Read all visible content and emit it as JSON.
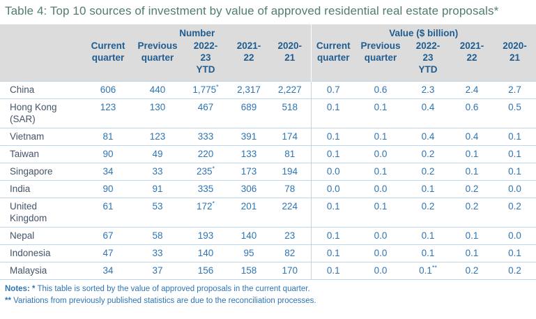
{
  "title": "Table 4: Top 10 sources of investment by value of approved residential real estate proposals*",
  "table": {
    "groups": [
      "Number",
      "Value ($ billion)"
    ],
    "subcolumns": [
      "Current\nquarter",
      "Previous\nquarter",
      "2022-\n23\nYTD",
      "2021-\n22",
      "2020-\n21"
    ],
    "rows": [
      {
        "country": "China",
        "cells": [
          "606",
          "440",
          "1,775",
          "2,317",
          "2,227",
          "0.7",
          "0.6",
          "2.3",
          "2.4",
          "2.7"
        ],
        "sups": [
          "",
          "",
          "*",
          "",
          "",
          "",
          "",
          "",
          "",
          ""
        ]
      },
      {
        "country": "Hong Kong (SAR)",
        "cells": [
          "123",
          "130",
          "467",
          "689",
          "518",
          "0.1",
          "0.1",
          "0.4",
          "0.6",
          "0.5"
        ],
        "sups": [
          "",
          "",
          "",
          "",
          "",
          "",
          "",
          "",
          "",
          ""
        ]
      },
      {
        "country": "Vietnam",
        "cells": [
          "81",
          "123",
          "333",
          "391",
          "174",
          "0.1",
          "0.1",
          "0.4",
          "0.4",
          "0.1"
        ],
        "sups": [
          "",
          "",
          "",
          "",
          "",
          "",
          "",
          "",
          "",
          ""
        ]
      },
      {
        "country": "Taiwan",
        "cells": [
          "90",
          "49",
          "220",
          "133",
          "81",
          "0.1",
          "0.0",
          "0.2",
          "0.1",
          "0.1"
        ],
        "sups": [
          "",
          "",
          "",
          "",
          "",
          "",
          "",
          "",
          "",
          ""
        ]
      },
      {
        "country": "Singapore",
        "cells": [
          "34",
          "33",
          "235",
          "173",
          "194",
          "0.0",
          "0.1",
          "0.2",
          "0.1",
          "0.1"
        ],
        "sups": [
          "",
          "",
          "*",
          "",
          "",
          "",
          "",
          "",
          "",
          ""
        ]
      },
      {
        "country": "India",
        "cells": [
          "90",
          "91",
          "335",
          "306",
          "78",
          "0.0",
          "0.0",
          "0.1",
          "0.2",
          "0.0"
        ],
        "sups": [
          "",
          "",
          "",
          "",
          "",
          "",
          "",
          "",
          "",
          ""
        ]
      },
      {
        "country": "United Kingdom",
        "cells": [
          "61",
          "53",
          "172",
          "201",
          "224",
          "0.1",
          "0.1",
          "0.2",
          "0.2",
          "0.2"
        ],
        "sups": [
          "",
          "",
          "*",
          "",
          "",
          "",
          "",
          "",
          "",
          ""
        ]
      },
      {
        "country": "Nepal",
        "cells": [
          "67",
          "58",
          "193",
          "140",
          "23",
          "0.1",
          "0.0",
          "0.1",
          "0.1",
          "0.0"
        ],
        "sups": [
          "",
          "",
          "",
          "",
          "",
          "",
          "",
          "",
          "",
          ""
        ]
      },
      {
        "country": "Indonesia",
        "cells": [
          "47",
          "33",
          "140",
          "95",
          "82",
          "0.1",
          "0.0",
          "0.1",
          "0.1",
          "0.1"
        ],
        "sups": [
          "",
          "",
          "",
          "",
          "",
          "",
          "",
          "",
          "",
          ""
        ]
      },
      {
        "country": "Malaysia",
        "cells": [
          "34",
          "37",
          "156",
          "158",
          "170",
          "0.1",
          "0.0",
          "0.1",
          "0.2",
          "0.2"
        ],
        "sups": [
          "",
          "",
          "",
          "",
          "",
          "",
          "",
          "**",
          "",
          ""
        ]
      }
    ]
  },
  "notes": [
    {
      "prefix": "Notes: *",
      "text": " This table is sorted by the value of approved proposals in the current quarter."
    },
    {
      "prefix": "**",
      "text": " Variations from previously published statistics are due to the reconciliation processes."
    }
  ],
  "colors": {
    "title_text": "#507d6e",
    "header_text": "#1f5c8f",
    "data_text": "#2e74b5",
    "country_text": "#44546a",
    "header_bg": "#dcdcdc",
    "row_border": "#bdd6ee",
    "group_divider": "#d0d0d0"
  }
}
